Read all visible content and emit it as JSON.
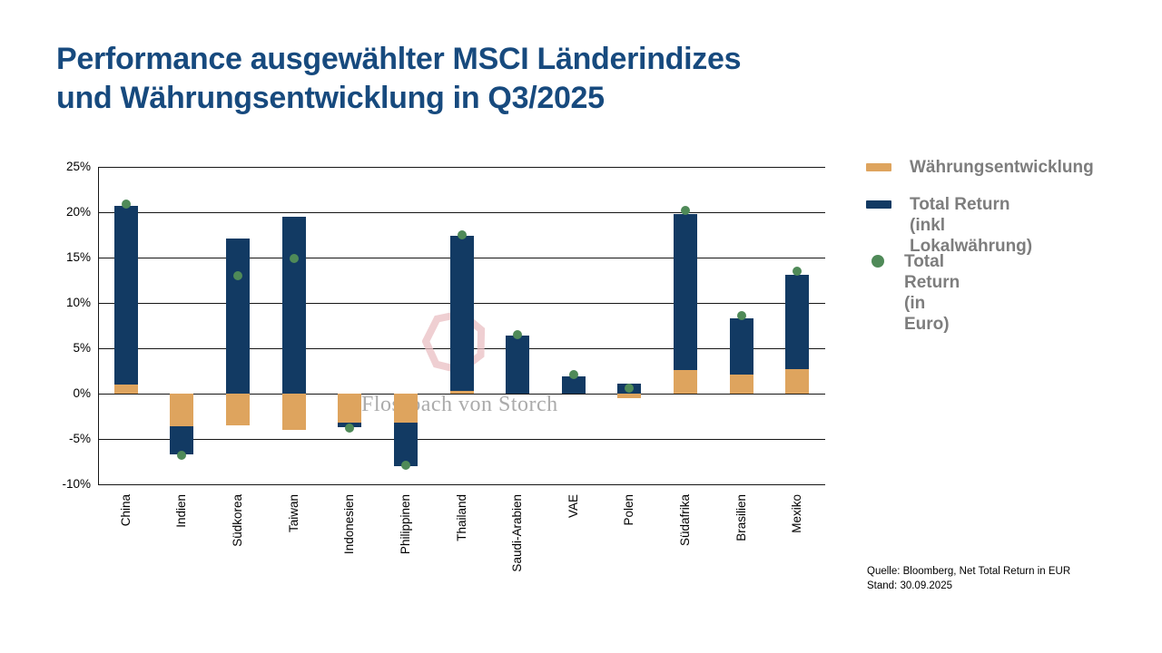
{
  "title": {
    "line1": "Performance ausgewählter MSCI Länderindizes",
    "line2": "und Währungsentwicklung in Q3/2025"
  },
  "legend": [
    {
      "swatch": "orange-bar-swatch",
      "label_lines": [
        "Währungsentwicklung",
        ""
      ]
    },
    {
      "swatch": "navy-bar-swatch",
      "label_lines": [
        "Total Return",
        "(inkl Lokalwährung)"
      ]
    },
    {
      "swatch": "green-dot-swatch",
      "label_lines": [
        "Total Return",
        "(in Euro)"
      ]
    }
  ],
  "watermark": {
    "text": "Flossbach von Storch",
    "logo": "heptagon-logo"
  },
  "source": {
    "line1": "Quelle: Bloomberg, Net Total Return in EUR",
    "line2": "Stand: 30.09.2025"
  },
  "colors": {
    "title_blue": "#174A7E",
    "bar_navy": "#123A63",
    "bar_orange": "#DEA45E",
    "dot_green": "#4F8A58",
    "legend_gray": "#7D7D7D",
    "grid_black": "#161616",
    "watermark_rose": "#EABFC3",
    "watermark_gray": "#ABABAB"
  },
  "chart_data": {
    "type": "bar",
    "stacked": true,
    "title": "Performance ausgewählter MSCI Länderindizes und Währungsentwicklung in Q3/2025",
    "categories": [
      "China",
      "Indien",
      "Südkorea",
      "Taiwan",
      "Indonesien",
      "Philippinen",
      "Thailand",
      "Saudi-Arabien",
      "VAE",
      "Polen",
      "Südafrika",
      "Brasilien",
      "Mexiko"
    ],
    "series": [
      {
        "name": "Währungsentwicklung",
        "role": "bar",
        "color_key": "bar_orange",
        "values": [
          1.0,
          -3.6,
          -3.5,
          -4.0,
          -3.2,
          -3.2,
          0.3,
          0.0,
          0.0,
          -0.5,
          2.6,
          2.1,
          2.7
        ]
      },
      {
        "name": "Total Return (inkl Lokalwährung)",
        "role": "bar",
        "color_key": "bar_navy",
        "values": [
          19.7,
          -3.1,
          17.1,
          19.5,
          -0.5,
          -4.8,
          17.1,
          6.4,
          1.9,
          1.1,
          17.2,
          6.2,
          10.4
        ]
      },
      {
        "name": "Total Return (in Euro)",
        "role": "point",
        "color_key": "dot_green",
        "values": [
          20.9,
          -6.8,
          13.0,
          14.9,
          -3.8,
          -7.9,
          17.5,
          6.5,
          2.1,
          0.6,
          20.2,
          8.6,
          13.5
        ]
      }
    ],
    "y_axis": {
      "min": -10,
      "max": 25,
      "step": 5,
      "tick_labels": [
        "25%",
        "20%",
        "15%",
        "10%",
        "5%",
        "0%",
        "-5%",
        "-10%"
      ],
      "tick_values": [
        25,
        20,
        15,
        10,
        5,
        0,
        -5,
        -10
      ]
    },
    "grid": true,
    "legend_position": "right",
    "xlabel": "",
    "ylabel": ""
  }
}
